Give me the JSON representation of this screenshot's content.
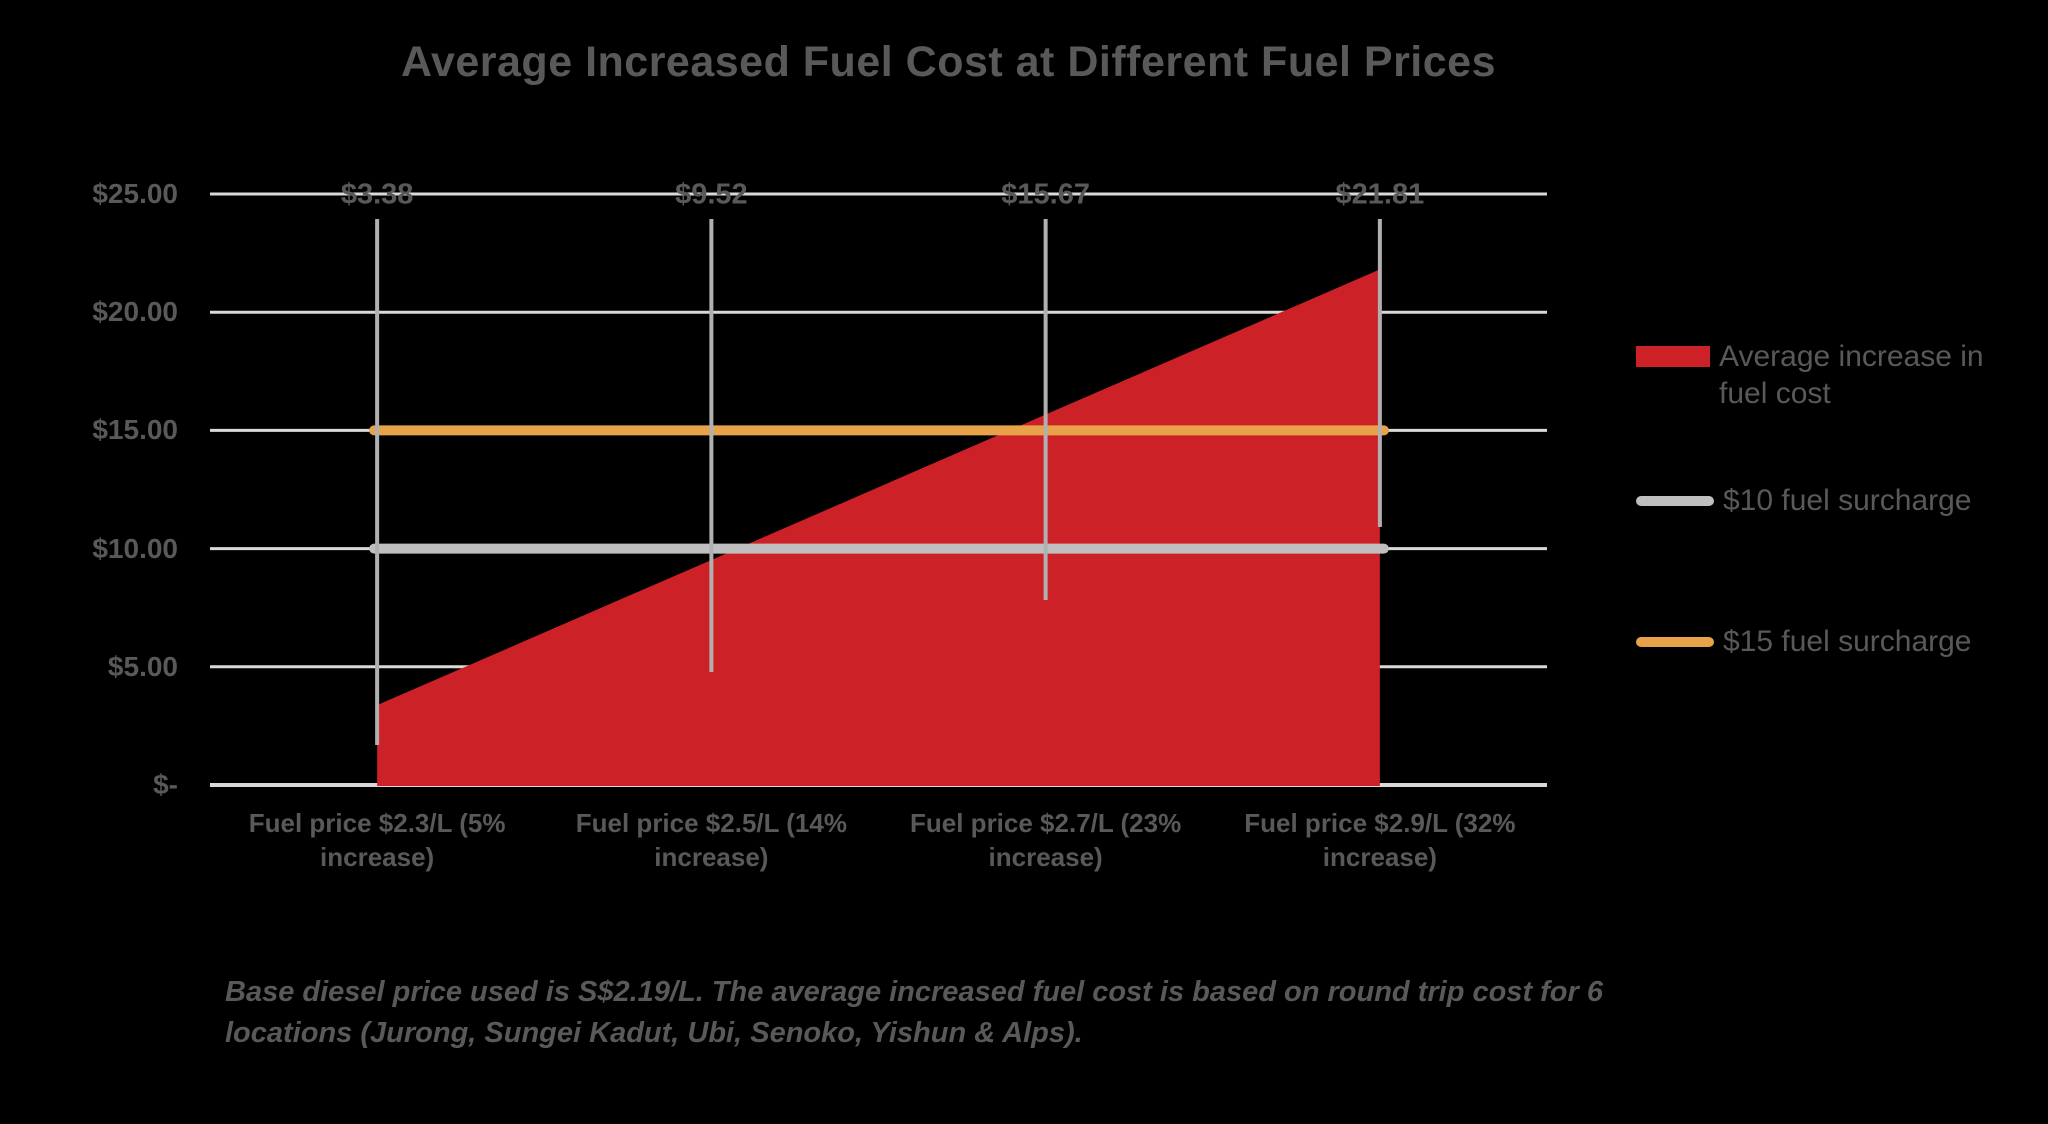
{
  "title": "Average Increased Fuel Cost at Different Fuel Prices",
  "footnote": {
    "lines": [
      "Base diesel price used is S$2.19/L. The average increased fuel cost is based on round trip cost for 6",
      "locations (Jurong, Sungei Kadut, Ubi, Senoko, Yishun & Alps)."
    ]
  },
  "legend": [
    {
      "label": "Average increase in fuel cost",
      "swatch": "box",
      "color": "#CD2128"
    },
    {
      "label": "$10 fuel surcharge",
      "swatch": "line",
      "color": "#BFBFBF"
    },
    {
      "label": "$15 fuel surcharge",
      "swatch": "line",
      "color": "#E8A34A"
    }
  ],
  "chart_data": {
    "type": "area",
    "title": "Average Increased Fuel Cost at Different Fuel Prices",
    "categories": [
      "Fuel price $2.3/L (5% increase)",
      "Fuel price $2.5/L (14% increase)",
      "Fuel price $2.7/L (23% increase)",
      "Fuel price $2.9/L (32% increase)"
    ],
    "series": [
      {
        "name": "Average increase in fuel cost",
        "type": "area",
        "color": "#CD2128",
        "values": [
          3.38,
          9.52,
          15.67,
          21.81
        ],
        "point_labels": [
          "$3.38",
          "$9.52",
          "$15.67",
          "$21.81"
        ]
      },
      {
        "name": "$10 fuel surcharge",
        "type": "line",
        "color": "#BFBFBF",
        "values": [
          10,
          10,
          10,
          10
        ]
      },
      {
        "name": "$15 fuel surcharge",
        "type": "line",
        "color": "#E8A34A",
        "values": [
          15,
          15,
          15,
          15
        ]
      }
    ],
    "ylim": [
      0,
      25
    ],
    "y_ticks": [
      {
        "value": 0,
        "label": "$-"
      },
      {
        "value": 5,
        "label": "$5.00"
      },
      {
        "value": 10,
        "label": "$10.00"
      },
      {
        "value": 15,
        "label": "$15.00"
      },
      {
        "value": 20,
        "label": "$20.00"
      },
      {
        "value": 25,
        "label": "$25.00"
      }
    ],
    "grid": true,
    "legend_position": "right",
    "colors": {
      "gridline": "#D9D9D9",
      "leader_line": "#B0B0B0",
      "text": "#595959",
      "background": "#000000"
    }
  }
}
